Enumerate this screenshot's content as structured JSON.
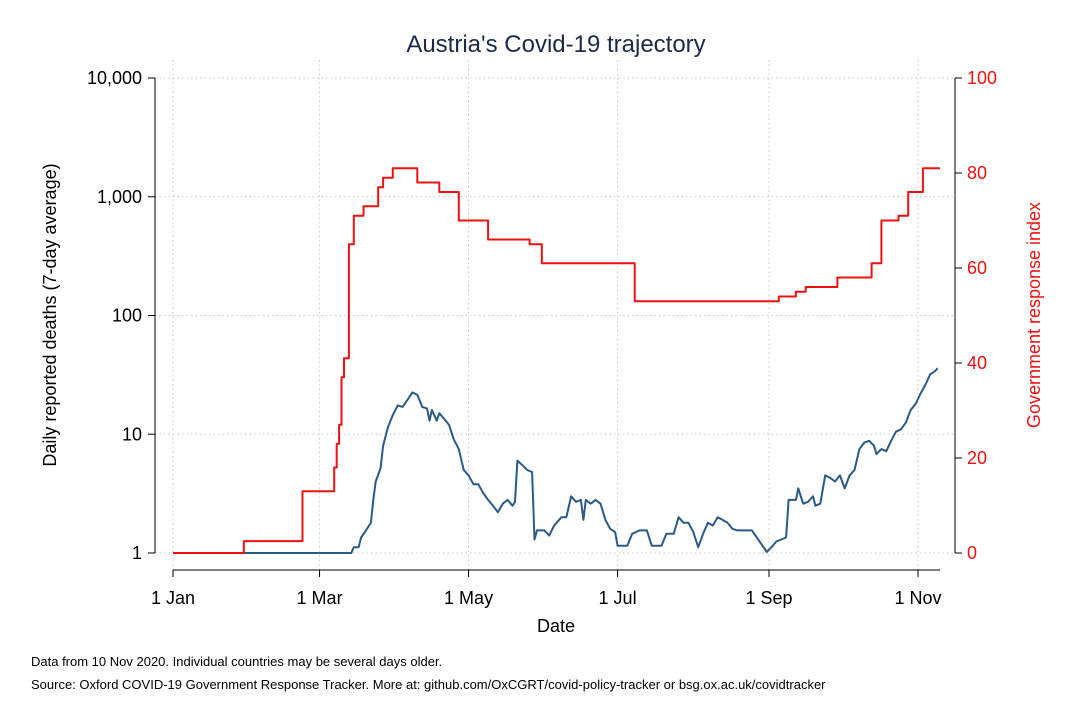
{
  "chart_data": {
    "type": "line",
    "title": "Austria's Covid-19 trajectory",
    "xlabel": "Date",
    "ylabel_left": "Daily reported deaths (7-day average)",
    "ylabel_right": "Government response index",
    "x_ticks": [
      "1 Jan",
      "1 Mar",
      "1 May",
      "1 Jul",
      "1 Sep",
      "1 Nov"
    ],
    "x_tick_dates": [
      "2020-01-01",
      "2020-03-01",
      "2020-05-01",
      "2020-07-01",
      "2020-09-01",
      "2020-11-01"
    ],
    "xlim": [
      "2020-01-01",
      "2020-11-10"
    ],
    "y_left_scale": "log",
    "y_left_ticks": [
      "1",
      "10",
      "100",
      "1,000",
      "10,000"
    ],
    "y_left_tick_values": [
      1,
      10,
      100,
      1000,
      10000
    ],
    "ylim_left": [
      1,
      10000
    ],
    "y_right_ticks": [
      "0",
      "20",
      "40",
      "60",
      "80",
      "100"
    ],
    "y_right_tick_values": [
      0,
      20,
      40,
      60,
      80,
      100
    ],
    "ylim_right": [
      0,
      100
    ],
    "grid": true,
    "series": [
      {
        "axis": "left",
        "color": "#2a5a85",
        "points": [
          [
            "2020-01-01",
            1
          ],
          [
            "2020-03-14",
            1
          ],
          [
            "2020-03-15",
            1.12
          ],
          [
            "2020-03-17",
            1.12
          ],
          [
            "2020-03-18",
            1.35
          ],
          [
            "2020-03-20",
            1.55
          ],
          [
            "2020-03-22",
            1.8
          ],
          [
            "2020-03-23",
            2.8
          ],
          [
            "2020-03-24",
            4.0
          ],
          [
            "2020-03-26",
            5.2
          ],
          [
            "2020-03-27",
            8.0
          ],
          [
            "2020-03-29",
            11.5
          ],
          [
            "2020-03-31",
            14.5
          ],
          [
            "2020-04-02",
            17.5
          ],
          [
            "2020-04-04",
            17.0
          ],
          [
            "2020-04-06",
            19.5
          ],
          [
            "2020-04-08",
            22.5
          ],
          [
            "2020-04-10",
            21.5
          ],
          [
            "2020-04-12",
            17.0
          ],
          [
            "2020-04-14",
            16.5
          ],
          [
            "2020-04-15",
            13.0
          ],
          [
            "2020-04-16",
            16.0
          ],
          [
            "2020-04-18",
            13.0
          ],
          [
            "2020-04-19",
            15.0
          ],
          [
            "2020-04-21",
            13.5
          ],
          [
            "2020-04-23",
            12.0
          ],
          [
            "2020-04-25",
            9.0
          ],
          [
            "2020-04-27",
            7.5
          ],
          [
            "2020-04-29",
            5.0
          ],
          [
            "2020-05-01",
            4.5
          ],
          [
            "2020-05-03",
            3.8
          ],
          [
            "2020-05-05",
            3.8
          ],
          [
            "2020-05-07",
            3.2
          ],
          [
            "2020-05-09",
            2.8
          ],
          [
            "2020-05-11",
            2.5
          ],
          [
            "2020-05-13",
            2.2
          ],
          [
            "2020-05-15",
            2.6
          ],
          [
            "2020-05-17",
            2.8
          ],
          [
            "2020-05-19",
            2.5
          ],
          [
            "2020-05-20",
            2.7
          ],
          [
            "2020-05-21",
            6.0
          ],
          [
            "2020-05-23",
            5.5
          ],
          [
            "2020-05-25",
            5.0
          ],
          [
            "2020-05-27",
            4.8
          ],
          [
            "2020-05-28",
            1.3
          ],
          [
            "2020-05-29",
            1.55
          ],
          [
            "2020-06-01",
            1.55
          ],
          [
            "2020-06-03",
            1.4
          ],
          [
            "2020-06-05",
            1.7
          ],
          [
            "2020-06-08",
            2.0
          ],
          [
            "2020-06-10",
            2.0
          ],
          [
            "2020-06-12",
            3.0
          ],
          [
            "2020-06-14",
            2.7
          ],
          [
            "2020-06-16",
            2.8
          ],
          [
            "2020-06-17",
            1.9
          ],
          [
            "2020-06-18",
            2.8
          ],
          [
            "2020-06-20",
            2.6
          ],
          [
            "2020-06-22",
            2.8
          ],
          [
            "2020-06-24",
            2.6
          ],
          [
            "2020-06-26",
            1.9
          ],
          [
            "2020-06-28",
            1.6
          ],
          [
            "2020-06-30",
            1.5
          ],
          [
            "2020-07-01",
            1.15
          ],
          [
            "2020-07-05",
            1.15
          ],
          [
            "2020-07-07",
            1.45
          ],
          [
            "2020-07-10",
            1.55
          ],
          [
            "2020-07-13",
            1.55
          ],
          [
            "2020-07-15",
            1.15
          ],
          [
            "2020-07-19",
            1.15
          ],
          [
            "2020-07-21",
            1.45
          ],
          [
            "2020-07-24",
            1.45
          ],
          [
            "2020-07-26",
            2.0
          ],
          [
            "2020-07-28",
            1.8
          ],
          [
            "2020-07-30",
            1.8
          ],
          [
            "2020-08-01",
            1.5
          ],
          [
            "2020-08-03",
            1.12
          ],
          [
            "2020-08-05",
            1.45
          ],
          [
            "2020-08-07",
            1.8
          ],
          [
            "2020-08-09",
            1.7
          ],
          [
            "2020-08-11",
            2.0
          ],
          [
            "2020-08-13",
            1.9
          ],
          [
            "2020-08-15",
            1.8
          ],
          [
            "2020-08-17",
            1.6
          ],
          [
            "2020-08-19",
            1.55
          ],
          [
            "2020-08-21",
            1.55
          ],
          [
            "2020-08-23",
            1.55
          ],
          [
            "2020-08-25",
            1.55
          ],
          [
            "2020-08-27",
            1.35
          ],
          [
            "2020-08-30",
            1.1
          ],
          [
            "2020-08-31",
            1.02
          ],
          [
            "2020-09-02",
            1.12
          ],
          [
            "2020-09-04",
            1.25
          ],
          [
            "2020-09-06",
            1.3
          ],
          [
            "2020-09-08",
            1.35
          ],
          [
            "2020-09-09",
            2.8
          ],
          [
            "2020-09-12",
            2.8
          ],
          [
            "2020-09-13",
            3.5
          ],
          [
            "2020-09-15",
            2.6
          ],
          [
            "2020-09-17",
            2.7
          ],
          [
            "2020-09-19",
            3.0
          ],
          [
            "2020-09-20",
            2.5
          ],
          [
            "2020-09-22",
            2.6
          ],
          [
            "2020-09-24",
            4.5
          ],
          [
            "2020-09-26",
            4.3
          ],
          [
            "2020-09-28",
            4.0
          ],
          [
            "2020-09-30",
            4.5
          ],
          [
            "2020-10-02",
            3.5
          ],
          [
            "2020-10-04",
            4.5
          ],
          [
            "2020-10-06",
            5.0
          ],
          [
            "2020-10-08",
            7.5
          ],
          [
            "2020-10-10",
            8.5
          ],
          [
            "2020-10-12",
            8.8
          ],
          [
            "2020-10-14",
            8.0
          ],
          [
            "2020-10-15",
            6.8
          ],
          [
            "2020-10-17",
            7.5
          ],
          [
            "2020-10-19",
            7.2
          ],
          [
            "2020-10-21",
            8.8
          ],
          [
            "2020-10-23",
            10.5
          ],
          [
            "2020-10-25",
            11.0
          ],
          [
            "2020-10-27",
            12.5
          ],
          [
            "2020-10-29",
            16.0
          ],
          [
            "2020-10-31",
            18.0
          ],
          [
            "2020-11-02",
            22.0
          ],
          [
            "2020-11-04",
            26.0
          ],
          [
            "2020-11-06",
            32.0
          ],
          [
            "2020-11-08",
            34.0
          ],
          [
            "2020-11-09",
            36.0
          ]
        ]
      },
      {
        "axis": "right",
        "color": "#ee1111",
        "step": true,
        "points": [
          [
            "2020-01-01",
            0
          ],
          [
            "2020-01-30",
            2.5
          ],
          [
            "2020-02-23",
            13
          ],
          [
            "2020-03-07",
            18
          ],
          [
            "2020-03-08",
            23
          ],
          [
            "2020-03-09",
            27
          ],
          [
            "2020-03-10",
            37
          ],
          [
            "2020-03-11",
            41
          ],
          [
            "2020-03-13",
            65
          ],
          [
            "2020-03-15",
            71
          ],
          [
            "2020-03-19",
            73
          ],
          [
            "2020-03-25",
            77
          ],
          [
            "2020-03-27",
            79
          ],
          [
            "2020-03-31",
            81
          ],
          [
            "2020-04-10",
            78
          ],
          [
            "2020-04-19",
            76
          ],
          [
            "2020-04-27",
            70
          ],
          [
            "2020-05-09",
            66
          ],
          [
            "2020-05-26",
            65
          ],
          [
            "2020-05-31",
            61
          ],
          [
            "2020-07-08",
            53
          ],
          [
            "2020-09-05",
            54
          ],
          [
            "2020-09-12",
            55
          ],
          [
            "2020-09-16",
            56
          ],
          [
            "2020-09-29",
            58
          ],
          [
            "2020-10-13",
            61
          ],
          [
            "2020-10-17",
            70
          ],
          [
            "2020-10-24",
            71
          ],
          [
            "2020-10-28",
            76
          ],
          [
            "2020-11-03",
            81
          ]
        ]
      }
    ]
  },
  "notes": {
    "line1": "Data from 10 Nov 2020. Individual countries may be several days older.",
    "line2": "Source: Oxford COVID-19 Government Response Tracker. More at: github.com/OxCGRT/covid-policy-tracker or bsg.ox.ac.uk/covidtracker"
  }
}
